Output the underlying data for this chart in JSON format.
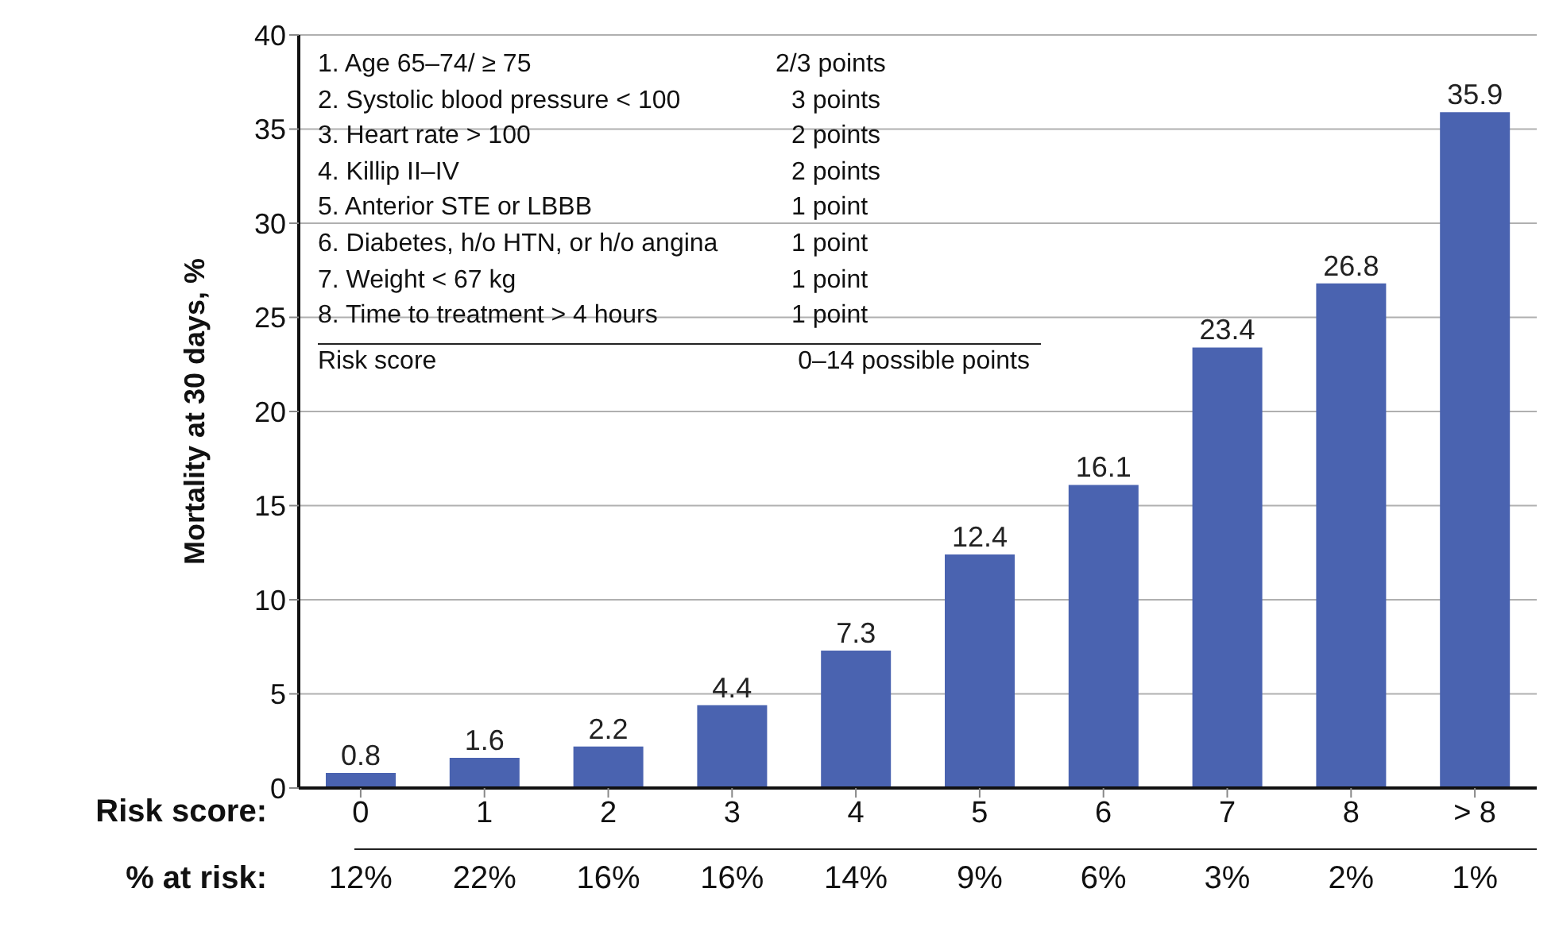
{
  "chart_data": {
    "type": "bar",
    "ylabel": "Mortality at 30 days, %",
    "xlabel": "Risk score:",
    "categories": [
      "0",
      "1",
      "2",
      "3",
      "4",
      "5",
      "6",
      "7",
      "8",
      "> 8"
    ],
    "values": [
      0.8,
      1.6,
      2.2,
      4.4,
      7.3,
      12.4,
      16.1,
      23.4,
      26.8,
      35.9
    ],
    "color": "#4a63b0",
    "data_labels": true,
    "ylim": [
      0,
      40
    ],
    "yticks": [
      0,
      5,
      10,
      15,
      20,
      25,
      30,
      35,
      40
    ],
    "grid": "y",
    "legend": false,
    "annotations": [
      "1. Age 65–74/ ≥ 75",
      "2/3 points",
      "2. Systolic blood pressure < 100",
      "3 points",
      "3. Heart rate > 100",
      "2 points",
      "4. Killip II–IV",
      "2 points",
      "5. Anterior STE or LBBB",
      "1 point",
      "6. Diabetes, h/o HTN, or h/o angina",
      "1 point",
      "7. Weight < 67 kg",
      "1 point",
      "8. Time to treatment > 4 hours",
      "1 point",
      "Risk score",
      "0–14 possible points",
      "% at risk:",
      "12%",
      "22%",
      "16%",
      "16%",
      "14%",
      "9%",
      "6%",
      "3%",
      "2%",
      "1%"
    ]
  }
}
